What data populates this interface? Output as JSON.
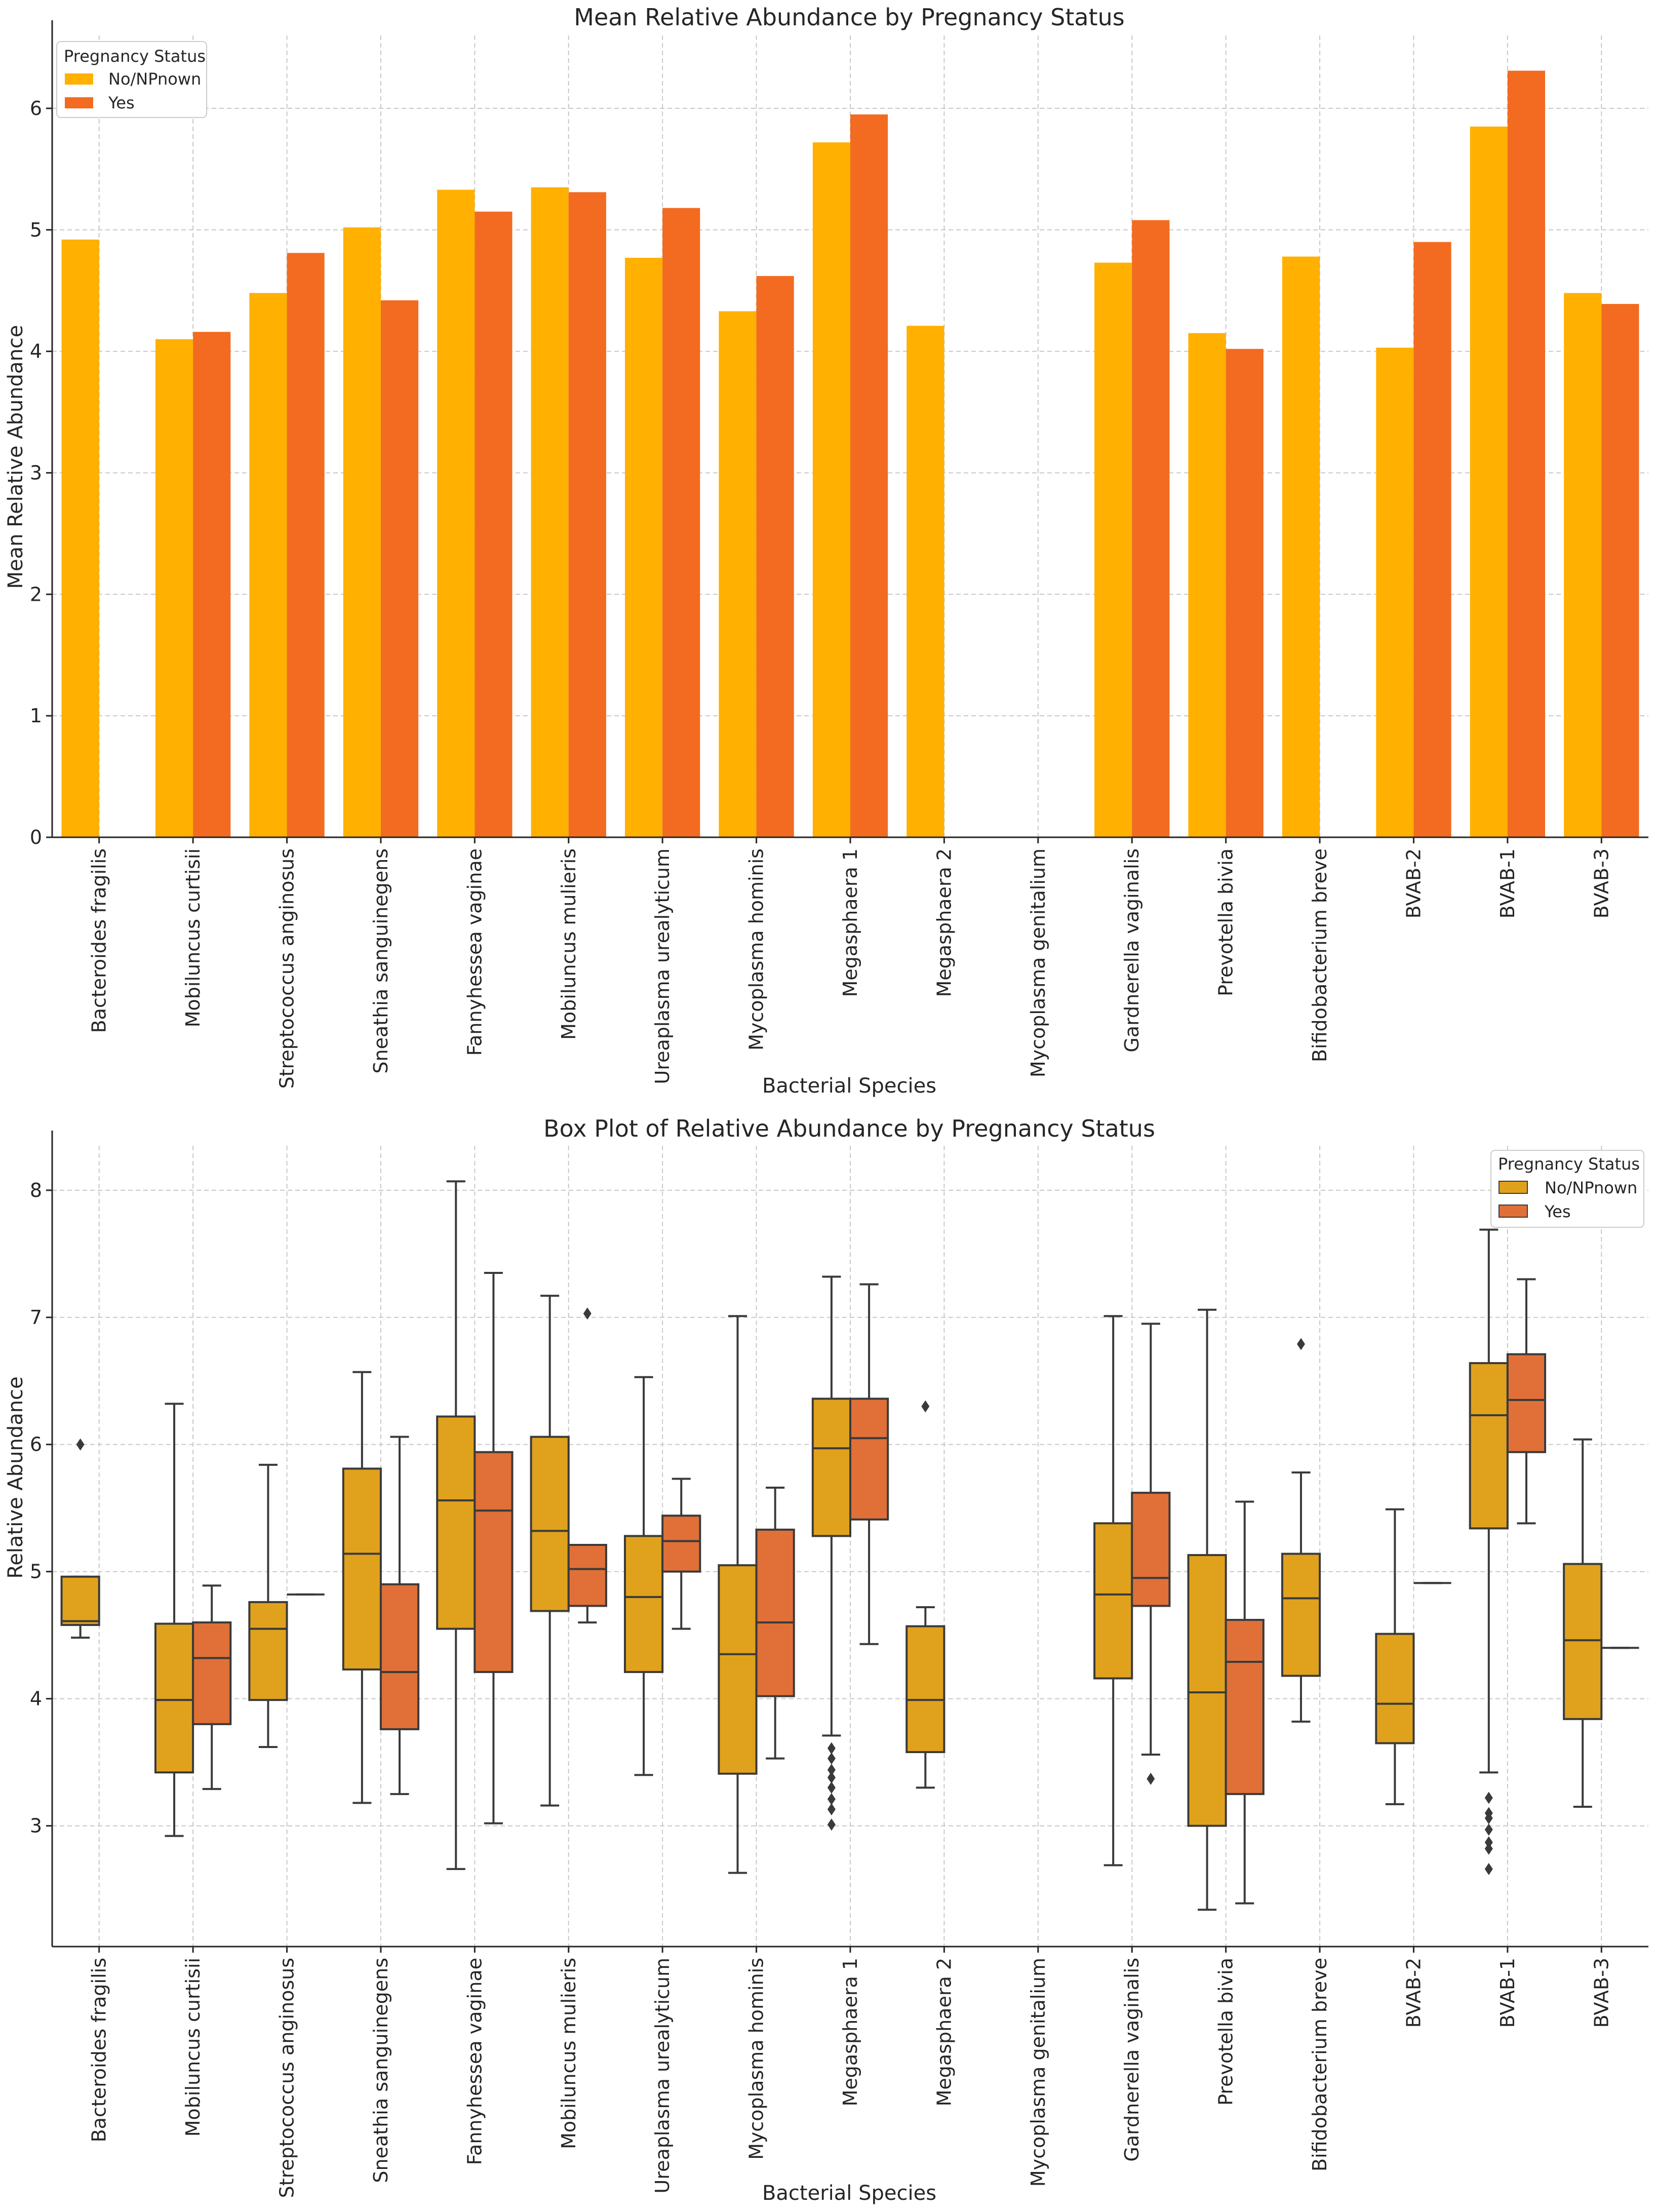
{
  "chart_data": [
    {
      "type": "bar",
      "title": "Mean Relative Abundance by Pregnancy Status",
      "xlabel": "Bacterial Species",
      "ylabel": "Mean Relative Abundance",
      "ylim": [
        0,
        6.6
      ],
      "yticks": [
        0,
        1,
        2,
        3,
        4,
        5,
        6
      ],
      "grid": true,
      "legend": {
        "title": "Pregnancy Status",
        "position": "top-left"
      },
      "categories": [
        "Bacteroides fragilis",
        "Mobiluncus curtisii",
        "Streptococcus anginosus",
        "Sneathia sanguinegens",
        "Fannyhessea vaginae",
        "Mobiluncus mulieris",
        "Ureaplasma urealyticum",
        "Mycoplasma hominis",
        "Megasphaera 1",
        "Megasphaera 2",
        "Mycoplasma genitalium",
        "Gardnerella vaginalis",
        "Prevotella bivia",
        "Bifidobacterium breve",
        "BVAB-2",
        "BVAB-1",
        "BVAB-3"
      ],
      "series": [
        {
          "name": "No/NPnown",
          "color": "#FFB000",
          "values": [
            4.92,
            4.1,
            4.48,
            5.02,
            5.33,
            5.35,
            4.77,
            4.33,
            5.72,
            4.21,
            null,
            4.73,
            4.15,
            4.78,
            4.03,
            5.85,
            4.48
          ]
        },
        {
          "name": "Yes",
          "color": "#F26B21",
          "values": [
            null,
            4.16,
            4.81,
            4.42,
            5.15,
            5.31,
            5.18,
            4.62,
            5.95,
            null,
            null,
            5.08,
            4.02,
            null,
            4.9,
            6.31,
            4.39
          ]
        }
      ]
    },
    {
      "type": "box",
      "title": "Box Plot of Relative Abundance by Pregnancy Status",
      "xlabel": "Bacterial Species",
      "ylabel": "Relative Abundance",
      "ylim": [
        2.05,
        8.35
      ],
      "yticks": [
        3,
        4,
        5,
        6,
        7,
        8
      ],
      "grid": true,
      "legend": {
        "title": "Pregnancy Status",
        "position": "top-right"
      },
      "categories": [
        "Bacteroides fragilis",
        "Mobiluncus curtisii",
        "Streptococcus anginosus",
        "Sneathia sanguinegens",
        "Fannyhessea vaginae",
        "Mobiluncus mulieris",
        "Ureaplasma urealyticum",
        "Mycoplasma hominis",
        "Megasphaera 1",
        "Megasphaera 2",
        "Mycoplasma genitalium",
        "Gardnerella vaginalis",
        "Prevotella bivia",
        "Bifidobacterium breve",
        "BVAB-2",
        "BVAB-1",
        "BVAB-3"
      ],
      "series": [
        {
          "name": "No/NPnown",
          "color": "#E0A21C",
          "boxes": [
            {
              "whislo": 4.48,
              "q1": 4.58,
              "med": 4.61,
              "q3": 4.96,
              "whishi": 4.96,
              "fliers": [
                6.0
              ]
            },
            {
              "whislo": 2.92,
              "q1": 3.42,
              "med": 3.99,
              "q3": 4.59,
              "whishi": 6.32,
              "fliers": []
            },
            {
              "whislo": 3.62,
              "q1": 3.99,
              "med": 4.55,
              "q3": 4.76,
              "whishi": 5.84,
              "fliers": []
            },
            {
              "whislo": 3.18,
              "q1": 4.23,
              "med": 5.14,
              "q3": 5.81,
              "whishi": 6.57,
              "fliers": []
            },
            {
              "whislo": 2.66,
              "q1": 4.55,
              "med": 5.56,
              "q3": 6.22,
              "whishi": 8.07,
              "fliers": []
            },
            {
              "whislo": 3.16,
              "q1": 4.69,
              "med": 5.32,
              "q3": 6.06,
              "whishi": 7.17,
              "fliers": []
            },
            {
              "whislo": 3.4,
              "q1": 4.21,
              "med": 4.8,
              "q3": 5.28,
              "whishi": 6.53,
              "fliers": []
            },
            {
              "whislo": 2.63,
              "q1": 3.41,
              "med": 4.35,
              "q3": 5.05,
              "whishi": 7.01,
              "fliers": []
            },
            {
              "whislo": 3.71,
              "q1": 5.28,
              "med": 5.97,
              "q3": 6.36,
              "whishi": 7.32,
              "fliers": [
                3.61,
                3.53,
                3.44,
                3.38,
                3.3,
                3.21,
                3.13,
                3.01
              ]
            },
            {
              "whislo": 3.3,
              "q1": 3.58,
              "med": 3.99,
              "q3": 4.57,
              "whishi": 4.72,
              "fliers": [
                6.3
              ]
            },
            null,
            {
              "whislo": 2.69,
              "q1": 4.16,
              "med": 4.82,
              "q3": 5.38,
              "whishi": 7.01,
              "fliers": []
            },
            {
              "whislo": 2.34,
              "q1": 3.0,
              "med": 4.05,
              "q3": 5.13,
              "whishi": 7.06,
              "fliers": []
            },
            {
              "whislo": 3.82,
              "q1": 4.18,
              "med": 4.79,
              "q3": 5.14,
              "whishi": 5.78,
              "fliers": [
                6.79
              ]
            },
            {
              "whislo": 3.17,
              "q1": 3.65,
              "med": 3.96,
              "q3": 4.51,
              "whishi": 5.49,
              "fliers": []
            },
            {
              "whislo": 3.42,
              "q1": 5.34,
              "med": 6.23,
              "q3": 6.64,
              "whishi": 7.69,
              "fliers": [
                3.22,
                3.1,
                3.06,
                2.97,
                2.87,
                2.82,
                2.66
              ]
            },
            {
              "whislo": 3.15,
              "q1": 3.84,
              "med": 4.46,
              "q3": 5.06,
              "whishi": 6.04,
              "fliers": []
            }
          ]
        },
        {
          "name": "Yes",
          "color": "#E07038",
          "boxes": [
            null,
            {
              "whislo": 3.29,
              "q1": 3.8,
              "med": 4.32,
              "q3": 4.6,
              "whishi": 4.89,
              "fliers": []
            },
            {
              "whislo": 4.82,
              "q1": 4.82,
              "med": 4.82,
              "q3": 4.82,
              "whishi": 4.82,
              "fliers": []
            },
            {
              "whislo": 3.25,
              "q1": 3.76,
              "med": 4.21,
              "q3": 4.9,
              "whishi": 6.06,
              "fliers": []
            },
            {
              "whislo": 3.02,
              "q1": 4.21,
              "med": 5.48,
              "q3": 5.94,
              "whishi": 7.35,
              "fliers": []
            },
            {
              "whislo": 4.6,
              "q1": 4.73,
              "med": 5.02,
              "q3": 5.21,
              "whishi": 5.21,
              "fliers": [
                7.03
              ]
            },
            {
              "whislo": 4.55,
              "q1": 5.0,
              "med": 5.24,
              "q3": 5.44,
              "whishi": 5.73,
              "fliers": []
            },
            {
              "whislo": 3.53,
              "q1": 4.02,
              "med": 4.6,
              "q3": 5.33,
              "whishi": 5.66,
              "fliers": []
            },
            {
              "whislo": 4.43,
              "q1": 5.41,
              "med": 6.05,
              "q3": 6.36,
              "whishi": 7.26,
              "fliers": []
            },
            null,
            null,
            {
              "whislo": 3.56,
              "q1": 4.73,
              "med": 4.95,
              "q3": 5.62,
              "whishi": 6.95,
              "fliers": [
                3.37
              ]
            },
            {
              "whislo": 2.39,
              "q1": 3.25,
              "med": 4.29,
              "q3": 4.62,
              "whishi": 5.55,
              "fliers": []
            },
            null,
            {
              "whislo": 4.91,
              "q1": 4.91,
              "med": 4.91,
              "q3": 4.91,
              "whishi": 4.91,
              "fliers": []
            },
            {
              "whislo": 5.38,
              "q1": 5.94,
              "med": 6.35,
              "q3": 6.71,
              "whishi": 7.3,
              "fliers": []
            },
            {
              "whislo": 4.4,
              "q1": 4.4,
              "med": 4.4,
              "q3": 4.4,
              "whishi": 4.4,
              "fliers": []
            }
          ]
        }
      ]
    }
  ]
}
